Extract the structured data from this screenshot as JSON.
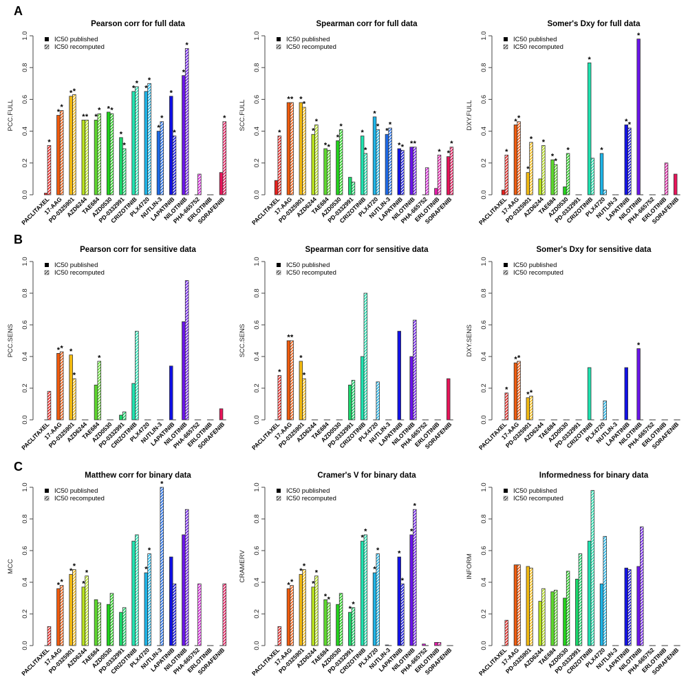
{
  "figure": {
    "panel_letters": [
      "A",
      "B",
      "C"
    ]
  },
  "drug_colors": {
    "PACLITAXEL": "#e8201c",
    "17-AAG": "#f05a0c",
    "PD-0325901": "#f4bb10",
    "AZD6244": "#b8e21c",
    "TAE684": "#5cd82c",
    "AZD0530": "#22d41c",
    "PD-0332991": "#18d86a",
    "CRIZOTINIB": "#1ee4b0",
    "PLX4720": "#1cb4e8",
    "NUTLIN-3": "#1c6ae8",
    "LAPATINIB": "#1010e8",
    "NILOTINIB": "#6a14ea",
    "PHA-665752": "#d41cd8",
    "ERLOTINIB": "#e41ca8",
    "SORAFENIB": "#e8145a"
  },
  "legend": {
    "published": "IC50 published",
    "recomputed": "IC50 recomputed"
  },
  "chart_data": [
    {
      "type": "bar",
      "panel": "A",
      "title": "Pearson corr for full data",
      "ylabel": "PCC.FULL",
      "xlabel": "",
      "ylim": [
        0,
        1
      ],
      "yticks": [
        "0.0",
        "0.2",
        "0.4",
        "0.6",
        "0.8",
        "1.0"
      ],
      "legend_position": "top-left",
      "categories": [
        "PACLITAXEL",
        "17-AAG",
        "PD-0325901",
        "AZD6244",
        "TAE684",
        "AZD0530",
        "PD-0332991",
        "CRIZOTINIB",
        "PLX4720",
        "NUTLIN-3",
        "LAPATINIB",
        "NILOTINIB",
        "PHA-665752",
        "ERLOTINIB",
        "SORAFENIB"
      ],
      "series": [
        {
          "name": "IC50 published",
          "values": [
            0.01,
            0.5,
            0.62,
            0.47,
            0.47,
            0.52,
            0.36,
            0.65,
            0.65,
            0.4,
            0.62,
            0.75,
            0.0,
            0.0,
            0.14
          ],
          "significant": [
            false,
            true,
            true,
            true,
            true,
            true,
            true,
            true,
            true,
            true,
            true,
            true,
            false,
            false,
            false
          ]
        },
        {
          "name": "IC50 recomputed",
          "values": [
            0.31,
            0.53,
            0.63,
            0.47,
            0.51,
            0.51,
            0.29,
            0.68,
            0.7,
            0.46,
            0.37,
            0.92,
            0.13,
            0.0,
            0.46
          ],
          "significant": [
            true,
            true,
            true,
            true,
            true,
            true,
            true,
            true,
            true,
            true,
            true,
            true,
            false,
            false,
            true
          ]
        }
      ]
    },
    {
      "type": "bar",
      "panel": "A",
      "title": "Spearman corr for full data",
      "ylabel": "SCC.FULL",
      "xlabel": "",
      "ylim": [
        0,
        1
      ],
      "yticks": [
        "0.0",
        "0.2",
        "0.4",
        "0.6",
        "0.8",
        "1.0"
      ],
      "legend_position": "top-left",
      "categories": [
        "PACLITAXEL",
        "17-AAG",
        "PD-0325901",
        "AZD6244",
        "TAE684",
        "AZD0530",
        "PD-0332991",
        "CRIZOTINIB",
        "PLX4720",
        "NUTLIN-3",
        "LAPATINIB",
        "NILOTINIB",
        "PHA-665752",
        "ERLOTINIB",
        "SORAFENIB"
      ],
      "series": [
        {
          "name": "IC50 published",
          "values": [
            0.09,
            0.58,
            0.58,
            0.38,
            0.29,
            0.34,
            0.11,
            0.37,
            0.49,
            0.38,
            0.29,
            0.3,
            0.0,
            0.04,
            0.24
          ],
          "significant": [
            false,
            true,
            true,
            true,
            true,
            true,
            false,
            true,
            true,
            true,
            true,
            true,
            false,
            false,
            true
          ]
        },
        {
          "name": "IC50 recomputed",
          "values": [
            0.37,
            0.58,
            0.55,
            0.44,
            0.28,
            0.41,
            0.08,
            0.26,
            0.41,
            0.42,
            0.28,
            0.3,
            0.17,
            0.25,
            0.3
          ],
          "significant": [
            true,
            true,
            true,
            true,
            true,
            true,
            false,
            true,
            true,
            true,
            true,
            true,
            false,
            true,
            true
          ]
        }
      ]
    },
    {
      "type": "bar",
      "panel": "A",
      "title": "Somer's Dxy for full data",
      "ylabel": "DXY.FULL",
      "xlabel": "",
      "ylim": [
        0,
        1
      ],
      "yticks": [
        "0.0",
        "0.2",
        "0.4",
        "0.6",
        "0.8",
        "1.0"
      ],
      "legend_position": "top-left",
      "categories": [
        "PACLITAXEL",
        "17-AAG",
        "PD-0325901",
        "AZD6244",
        "TAE684",
        "AZD0530",
        "PD-0332991",
        "CRIZOTINIB",
        "PLX4720",
        "NUTLIN-3",
        "LAPATINIB",
        "NILOTINIB",
        "PHA-665752",
        "ERLOTINIB",
        "SORAFENIB"
      ],
      "series": [
        {
          "name": "IC50 published",
          "values": [
            0.03,
            0.44,
            0.14,
            0.1,
            0.22,
            0.05,
            0.0,
            0.83,
            0.26,
            0.0,
            0.44,
            0.98,
            0.0,
            0.0,
            0.13
          ],
          "significant": [
            false,
            true,
            true,
            false,
            true,
            false,
            false,
            true,
            true,
            false,
            true,
            true,
            false,
            false,
            false
          ]
        },
        {
          "name": "IC50 recomputed",
          "values": [
            0.25,
            0.46,
            0.33,
            0.31,
            0.19,
            0.26,
            0.0,
            0.23,
            0.03,
            0.0,
            0.42,
            0.0,
            0.0,
            0.2,
            0.0
          ],
          "significant": [
            true,
            true,
            true,
            true,
            true,
            true,
            false,
            false,
            false,
            false,
            true,
            false,
            false,
            false,
            false
          ]
        }
      ]
    },
    {
      "type": "bar",
      "panel": "B",
      "title": "Pearson corr for sensitive data",
      "ylabel": "PCC.SENS",
      "xlabel": "",
      "ylim": [
        0,
        1
      ],
      "yticks": [
        "0.0",
        "0.2",
        "0.4",
        "0.6",
        "0.8",
        "1.0"
      ],
      "legend_position": "top-left",
      "categories": [
        "PACLITAXEL",
        "17-AAG",
        "PD-0325901",
        "AZD6244",
        "TAE684",
        "AZD0530",
        "PD-0332991",
        "CRIZOTINIB",
        "PLX4720",
        "NUTLIN-3",
        "LAPATINIB",
        "NILOTINIB",
        "PHA-665752",
        "ERLOTINIB",
        "SORAFENIB"
      ],
      "series": [
        {
          "name": "IC50 published",
          "values": [
            0.0,
            0.42,
            0.41,
            0.0,
            0.22,
            0.0,
            0.03,
            0.23,
            0.0,
            0.0,
            0.34,
            0.62,
            0.0,
            0.0,
            0.07
          ],
          "significant": [
            false,
            true,
            true,
            false,
            false,
            false,
            false,
            false,
            false,
            false,
            false,
            false,
            false,
            false,
            false
          ]
        },
        {
          "name": "IC50 recomputed",
          "values": [
            0.18,
            0.43,
            0.26,
            0.0,
            0.37,
            0.0,
            0.05,
            0.56,
            0.0,
            0.0,
            0.0,
            0.88,
            0.0,
            0.0,
            0.0
          ],
          "significant": [
            false,
            true,
            true,
            false,
            true,
            false,
            false,
            false,
            false,
            false,
            false,
            false,
            false,
            false,
            false
          ]
        }
      ]
    },
    {
      "type": "bar",
      "panel": "B",
      "title": "Spearman corr for sensitive data",
      "ylabel": "SCC.SENS",
      "xlabel": "",
      "ylim": [
        0,
        1
      ],
      "yticks": [
        "0.0",
        "0.2",
        "0.4",
        "0.6",
        "0.8",
        "1.0"
      ],
      "legend_position": "top-left",
      "categories": [
        "PACLITAXEL",
        "17-AAG",
        "PD-0325901",
        "AZD6244",
        "TAE684",
        "AZD0530",
        "PD-0332991",
        "CRIZOTINIB",
        "PLX4720",
        "NUTLIN-3",
        "LAPATINIB",
        "NILOTINIB",
        "PHA-665752",
        "ERLOTINIB",
        "SORAFENIB"
      ],
      "series": [
        {
          "name": "IC50 published",
          "values": [
            0.0,
            0.5,
            0.37,
            0.0,
            0.0,
            0.0,
            0.22,
            0.4,
            0.0,
            0.0,
            0.56,
            0.4,
            0.0,
            0.0,
            0.26
          ],
          "significant": [
            false,
            true,
            true,
            false,
            false,
            false,
            false,
            false,
            false,
            false,
            false,
            false,
            false,
            false,
            false
          ]
        },
        {
          "name": "IC50 recomputed",
          "values": [
            0.28,
            0.5,
            0.26,
            0.0,
            0.0,
            0.0,
            0.25,
            0.8,
            0.24,
            0.0,
            0.0,
            0.63,
            0.0,
            0.0,
            0.0
          ],
          "significant": [
            true,
            true,
            true,
            false,
            false,
            false,
            false,
            false,
            false,
            false,
            false,
            false,
            false,
            false,
            false
          ]
        }
      ]
    },
    {
      "type": "bar",
      "panel": "B",
      "title": "Somer's Dxy for sensitive data",
      "ylabel": "DXY.SENS",
      "xlabel": "",
      "ylim": [
        0,
        1
      ],
      "yticks": [
        "0.0",
        "0.2",
        "0.4",
        "0.6",
        "0.8",
        "1.0"
      ],
      "legend_position": "top-left",
      "categories": [
        "PACLITAXEL",
        "17-AAG",
        "PD-0325901",
        "AZD6244",
        "TAE684",
        "AZD0530",
        "PD-0332991",
        "CRIZOTINIB",
        "PLX4720",
        "NUTLIN-3",
        "LAPATINIB",
        "NILOTINIB",
        "PHA-665752",
        "ERLOTINIB",
        "SORAFENIB"
      ],
      "series": [
        {
          "name": "IC50 published",
          "values": [
            0.0,
            0.36,
            0.14,
            0.0,
            0.0,
            0.0,
            0.0,
            0.33,
            0.0,
            0.0,
            0.33,
            0.45,
            0.0,
            0.0,
            0.0
          ],
          "significant": [
            false,
            true,
            true,
            false,
            false,
            false,
            false,
            false,
            false,
            false,
            false,
            true,
            false,
            false,
            false
          ]
        },
        {
          "name": "IC50 recomputed",
          "values": [
            0.17,
            0.37,
            0.15,
            0.0,
            0.0,
            0.0,
            0.0,
            0.0,
            0.12,
            0.0,
            0.0,
            0.0,
            0.0,
            0.0,
            0.0
          ],
          "significant": [
            true,
            true,
            true,
            false,
            false,
            false,
            false,
            false,
            false,
            false,
            false,
            false,
            false,
            false,
            false
          ]
        }
      ]
    },
    {
      "type": "bar",
      "panel": "C",
      "title": "Matthew corr for binary data",
      "ylabel": "MCC",
      "xlabel": "",
      "ylim": [
        0,
        1
      ],
      "yticks": [
        "0.0",
        "0.2",
        "0.4",
        "0.6",
        "0.8",
        "1.0"
      ],
      "legend_position": "top-left",
      "categories": [
        "PACLITAXEL",
        "17-AAG",
        "PD-0325901",
        "AZD6244",
        "TAE684",
        "AZD0530",
        "PD-0332991",
        "CRIZOTINIB",
        "PLX4720",
        "NUTLIN-3",
        "LAPATINIB",
        "NILOTINIB",
        "PHA-665752",
        "ERLOTINIB",
        "SORAFENIB"
      ],
      "series": [
        {
          "name": "IC50 published",
          "values": [
            0.0,
            0.36,
            0.45,
            0.37,
            0.29,
            0.26,
            0.21,
            0.66,
            0.46,
            0.0,
            0.56,
            0.7,
            0.0,
            0.0,
            0.0
          ],
          "significant": [
            false,
            true,
            true,
            true,
            false,
            false,
            false,
            false,
            true,
            false,
            false,
            false,
            false,
            false,
            false
          ]
        },
        {
          "name": "IC50 recomputed",
          "values": [
            0.12,
            0.38,
            0.48,
            0.44,
            0.27,
            0.33,
            0.24,
            0.7,
            0.58,
            1.0,
            0.39,
            0.86,
            0.39,
            0.0,
            0.39
          ],
          "significant": [
            false,
            true,
            true,
            true,
            false,
            false,
            false,
            false,
            true,
            true,
            false,
            false,
            false,
            false,
            false
          ]
        }
      ]
    },
    {
      "type": "bar",
      "panel": "C",
      "title": "Cramer's V for binary data",
      "ylabel": "CRAMERV",
      "xlabel": "",
      "ylim": [
        0,
        1
      ],
      "yticks": [
        "0.0",
        "0.2",
        "0.4",
        "0.6",
        "0.8",
        "1.0"
      ],
      "legend_position": "top-left",
      "categories": [
        "PACLITAXEL",
        "17-AAG",
        "PD-0325901",
        "AZD6244",
        "TAE684",
        "AZD0530",
        "PD-0332991",
        "CRIZOTINIB",
        "PLX4720",
        "NUTLIN-3",
        "LAPATINIB",
        "NILOTINIB",
        "PHA-665752",
        "ERLOTINIB",
        "SORAFENIB"
      ],
      "series": [
        {
          "name": "IC50 published",
          "values": [
            0.0,
            0.36,
            0.45,
            0.37,
            0.29,
            0.26,
            0.21,
            0.66,
            0.46,
            0.004,
            0.56,
            0.7,
            0.01,
            0.02,
            0.0
          ],
          "significant": [
            false,
            true,
            true,
            true,
            true,
            false,
            true,
            true,
            true,
            false,
            true,
            true,
            false,
            false,
            false
          ]
        },
        {
          "name": "IC50 recomputed",
          "values": [
            0.12,
            0.38,
            0.48,
            0.44,
            0.27,
            0.33,
            0.24,
            0.7,
            0.58,
            0.0,
            0.39,
            0.86,
            0.0,
            0.02,
            0.0
          ],
          "significant": [
            false,
            true,
            true,
            true,
            true,
            false,
            true,
            true,
            true,
            false,
            true,
            true,
            false,
            false,
            false
          ]
        }
      ]
    },
    {
      "type": "bar",
      "panel": "C",
      "title": "Informedness for binary data",
      "ylabel": "INFORM",
      "xlabel": "",
      "ylim": [
        0,
        1
      ],
      "yticks": [
        "0.0",
        "0.2",
        "0.4",
        "0.6",
        "0.8",
        "1.0"
      ],
      "legend_position": "top-left",
      "categories": [
        "PACLITAXEL",
        "17-AAG",
        "PD-0325901",
        "AZD6244",
        "TAE684",
        "AZD0530",
        "PD-0332991",
        "CRIZOTINIB",
        "PLX4720",
        "NUTLIN-3",
        "LAPATINIB",
        "NILOTINIB",
        "PHA-665752",
        "ERLOTINIB",
        "SORAFENIB"
      ],
      "series": [
        {
          "name": "IC50 published",
          "values": [
            0.0,
            0.51,
            0.5,
            0.28,
            0.34,
            0.3,
            0.42,
            0.66,
            0.39,
            0.0,
            0.49,
            0.5,
            0.0,
            0.0,
            0.0
          ],
          "significant": [
            false,
            false,
            false,
            false,
            false,
            false,
            false,
            false,
            false,
            false,
            false,
            false,
            false,
            false,
            false
          ]
        },
        {
          "name": "IC50 recomputed",
          "values": [
            0.16,
            0.51,
            0.49,
            0.36,
            0.35,
            0.47,
            0.58,
            0.98,
            0.69,
            0.0,
            0.48,
            0.75,
            0.0,
            0.0,
            0.0
          ],
          "significant": [
            false,
            false,
            false,
            false,
            false,
            false,
            false,
            false,
            false,
            false,
            false,
            false,
            false,
            false,
            false
          ]
        }
      ]
    }
  ]
}
